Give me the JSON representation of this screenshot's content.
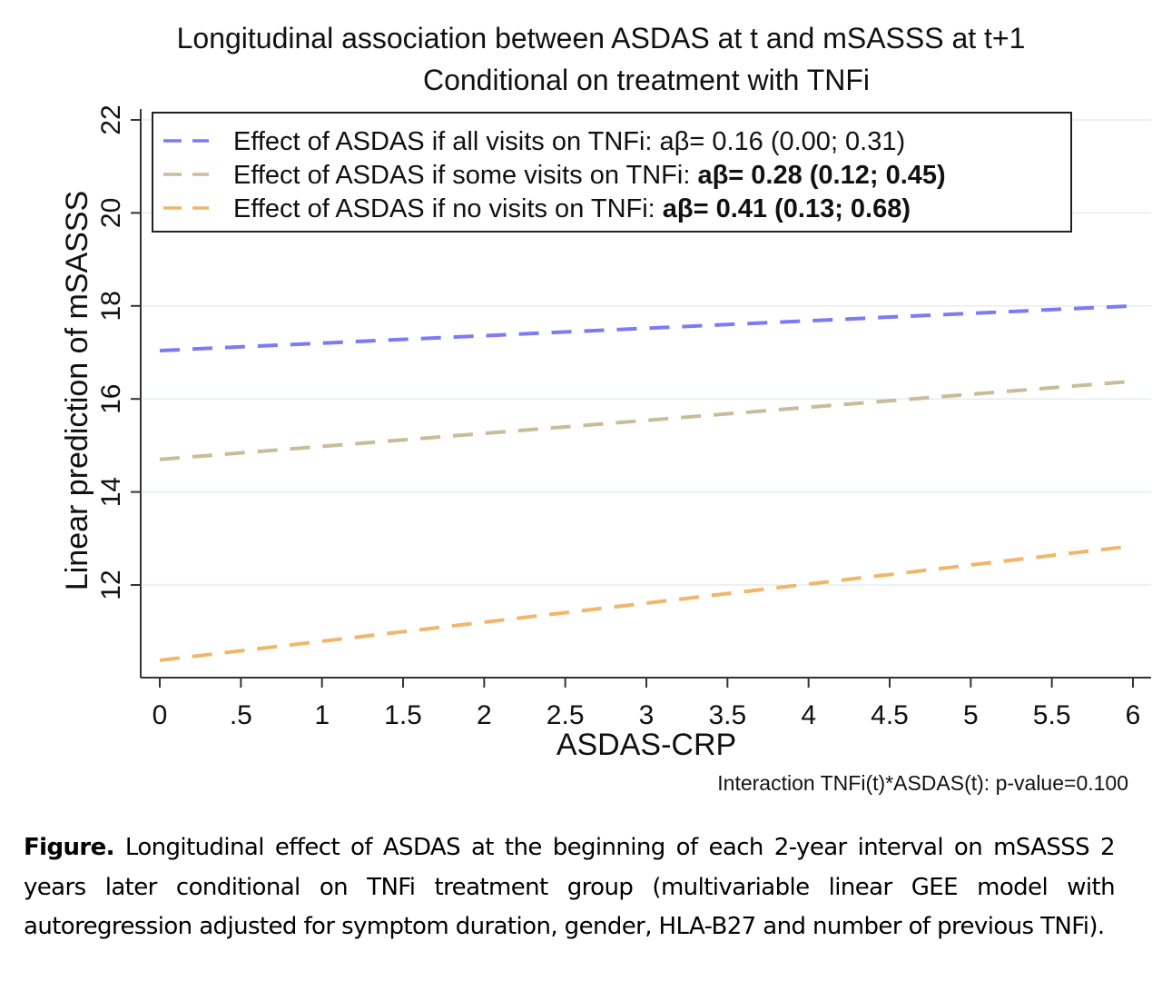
{
  "chart_data": {
    "type": "line",
    "title": [
      "Longitudinal association between ASDAS at t and mSASSS at t+1",
      "Conditional on treatment with TNFi"
    ],
    "xlabel": "ASDAS-CRP",
    "ylabel": "Linear prediction of mSASSS",
    "xlim": [
      0,
      6
    ],
    "ylim": [
      10,
      22.2
    ],
    "xticks": [
      "0",
      ".5",
      "1",
      "1.5",
      "2",
      "2.5",
      "3",
      "3.5",
      "4",
      "4.5",
      "5",
      "5.5",
      "6"
    ],
    "xtick_values": [
      0,
      0.5,
      1,
      1.5,
      2,
      2.5,
      3,
      3.5,
      4,
      4.5,
      5,
      5.5,
      6
    ],
    "yticks": [
      "12",
      "14",
      "16",
      "18",
      "20",
      "22"
    ],
    "ytick_values": [
      12,
      14,
      16,
      18,
      20,
      22
    ],
    "grid": true,
    "legend_position": "top",
    "series": [
      {
        "name": "all",
        "label_normal": "Effect of ASDAS if all visits on TNFi: aβ= 0.16 (0.00; 0.31)",
        "label_bold": "",
        "color": "#7b7bf5",
        "x": [
          0,
          6
        ],
        "y": [
          17.04,
          18.0
        ]
      },
      {
        "name": "some",
        "label_normal": "Effect of ASDAS if some visits on TNFi: ",
        "label_bold": "aβ= 0.28 (0.12; 0.45)",
        "color": "#c9bc9a",
        "x": [
          0,
          6
        ],
        "y": [
          14.7,
          16.38
        ]
      },
      {
        "name": "none",
        "label_normal": "Effect of ASDAS if no visits on TNFi:  ",
        "label_bold": "aβ= 0.41 (0.13; 0.68)",
        "color": "#f0b66a",
        "x": [
          0,
          6
        ],
        "y": [
          10.38,
          12.84
        ]
      }
    ],
    "note": "Interaction TNFi(t)*ASDAS(t): p-value=0.100"
  },
  "caption": {
    "lead": "Figure.",
    "text": " Longitudinal effect of ASDAS at the beginning of each 2-year interval on mSASSS 2 years later conditional on TNFi treatment group (multivariable linear GEE model with autoregression adjusted for symptom duration, gender, HLA-B27 and number of previous TNFi)."
  }
}
